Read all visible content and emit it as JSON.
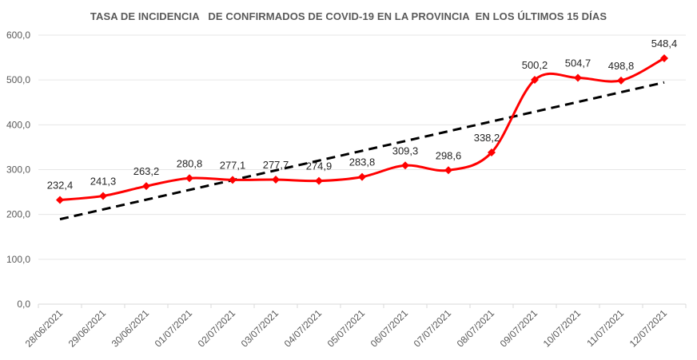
{
  "chart_data": {
    "type": "line",
    "title": "TASA DE INCIDENCIA   DE CONFIRMADOS DE COVID-19 EN LA PROVINCIA  EN LOS ÚLTIMOS 15 DÍAS",
    "categories": [
      "28/06/2021",
      "29/06/2021",
      "30/06/2021",
      "01/07/2021",
      "02/07/2021",
      "03/07/2021",
      "04/07/2021",
      "05/07/2021",
      "06/07/2021",
      "07/07/2021",
      "08/07/2021",
      "09/07/2021",
      "10/07/2021",
      "11/07/2021",
      "12/07/2021"
    ],
    "series": [
      {
        "values": [
          232.4,
          241.3,
          263.2,
          280.8,
          277.1,
          277.7,
          274.9,
          283.8,
          309.3,
          298.6,
          338.2,
          500.2,
          504.7,
          498.8,
          548.4
        ],
        "labels": [
          "232,4",
          "241,3",
          "263,2",
          "280,8",
          "277,1",
          "277,7",
          "274,9",
          "283,8",
          "309,3",
          "298,6",
          "338,2",
          "500,2",
          "504,7",
          "498,8",
          "548,4"
        ],
        "color": "#ff0000",
        "marker": "diamond",
        "smoothed": true
      }
    ],
    "trendline": {
      "type": "linear",
      "color": "#000000",
      "style": "dashed"
    },
    "ylim": [
      0,
      600
    ],
    "yticks": [
      "0,0",
      "100,0",
      "200,0",
      "300,0",
      "400,0",
      "500,0",
      "600,0"
    ],
    "grid": true,
    "legend": "none",
    "xlabel": "",
    "ylabel": ""
  }
}
